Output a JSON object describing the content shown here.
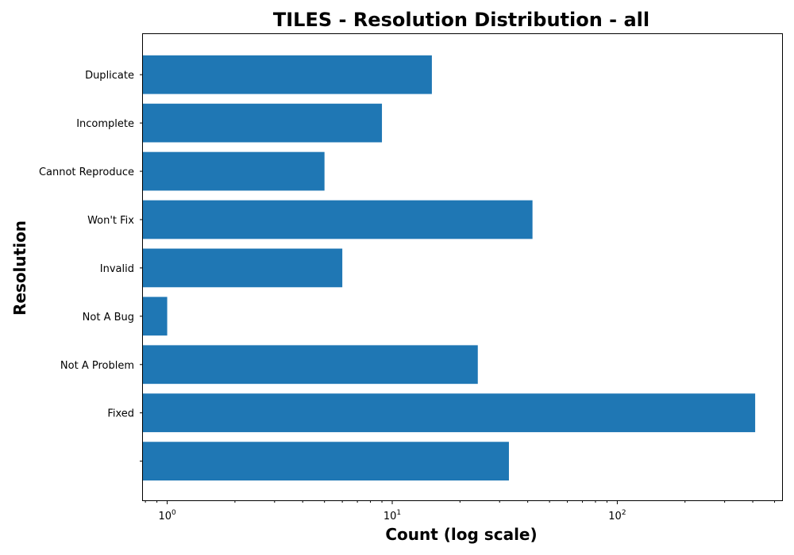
{
  "chart_data": {
    "type": "bar",
    "orientation": "horizontal",
    "title": "TILES - Resolution Distribution - all",
    "xlabel": "Count (log scale)",
    "ylabel": "Resolution",
    "x_scale": "log",
    "xlim": [
      0.78,
      540
    ],
    "categories": [
      "Duplicate",
      "Incomplete",
      "Cannot Reproduce",
      "Won't Fix",
      "Invalid",
      "Not A Bug",
      "Not A Problem",
      "Fixed",
      ""
    ],
    "values": [
      15,
      9,
      5,
      42,
      6,
      1,
      24,
      410,
      33
    ],
    "x_ticks": [
      {
        "base": "10",
        "exp": "0",
        "value": 1
      },
      {
        "base": "10",
        "exp": "1",
        "value": 10
      },
      {
        "base": "10",
        "exp": "2",
        "value": 100
      }
    ],
    "bar_color": "#1f77b4",
    "grid": false
  }
}
